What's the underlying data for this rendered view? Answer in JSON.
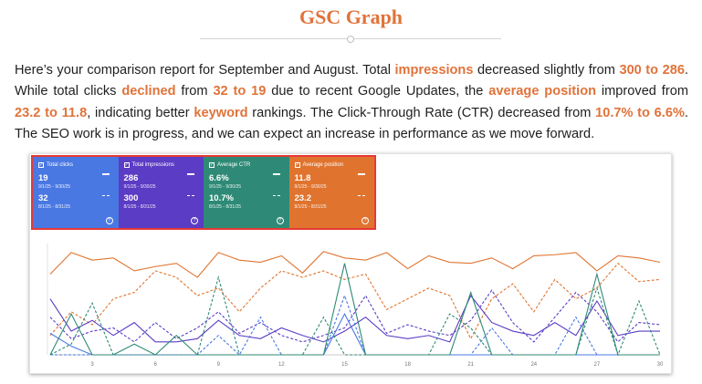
{
  "title": "GSC Graph",
  "report": [
    {
      "t": "Here’s your comparison report for September and August. Total ",
      "hl": false
    },
    {
      "t": "impressions",
      "hl": true
    },
    {
      "t": " decreased slightly from ",
      "hl": false
    },
    {
      "t": "300 to 286",
      "hl": true
    },
    {
      "t": ". While total clicks ",
      "hl": false
    },
    {
      "t": "declined",
      "hl": true
    },
    {
      "t": " from ",
      "hl": false
    },
    {
      "t": "32 to 19",
      "hl": true
    },
    {
      "t": " due to recent Google Updates, the ",
      "hl": false
    },
    {
      "t": "average position",
      "hl": true
    },
    {
      "t": " improved from ",
      "hl": false
    },
    {
      "t": "23.2 to 11.8",
      "hl": true
    },
    {
      "t": ", indicating better ",
      "hl": false
    },
    {
      "t": "keyword",
      "hl": true
    },
    {
      "t": " rankings. The Click-Through Rate (CTR) decreased from ",
      "hl": false
    },
    {
      "t": "10.7% to 6.6%",
      "hl": true
    },
    {
      "t": ". The SEO work is in progress, and we can expect an increase in performance as we move forward.",
      "hl": false
    }
  ],
  "cards": [
    {
      "label": "Total clicks",
      "color": "#4A78E3",
      "current": "19",
      "current_range": "9/1/25 - 9/30/25",
      "previous": "32",
      "previous_range": "8/1/25 - 8/31/25"
    },
    {
      "label": "Total impressions",
      "color": "#5B3CC4",
      "current": "286",
      "current_range": "9/1/25 - 9/30/25",
      "previous": "300",
      "previous_range": "8/1/25 - 8/31/25"
    },
    {
      "label": "Average CTR",
      "color": "#2E8A76",
      "current": "6.6%",
      "current_range": "9/1/25 - 9/30/25",
      "previous": "10.7%",
      "previous_range": "8/1/25 - 8/31/25"
    },
    {
      "label": "Average position",
      "color": "#E0742F",
      "current": "11.8",
      "current_range": "9/1/25 - 9/30/25",
      "previous": "23.2",
      "previous_range": "8/1/25 - 8/31/25"
    }
  ],
  "chart_data": {
    "type": "line",
    "x": [
      1,
      2,
      3,
      4,
      5,
      6,
      7,
      8,
      9,
      10,
      11,
      12,
      13,
      14,
      15,
      16,
      17,
      18,
      19,
      20,
      21,
      22,
      23,
      24,
      25,
      26,
      27,
      28,
      29,
      30
    ],
    "x_tick_labels": [
      "3",
      "6",
      "9",
      "12",
      "15",
      "18",
      "21",
      "24",
      "27",
      "30"
    ],
    "grid": false,
    "series": [
      {
        "color": "#E0742F",
        "style": "solid",
        "values": [
          75,
          95,
          88,
          90,
          78,
          82,
          85,
          72,
          95,
          88,
          86,
          92,
          76,
          96,
          90,
          88,
          95,
          80,
          92,
          86,
          85,
          90,
          80,
          92,
          93,
          95,
          78,
          92,
          90,
          86
        ]
      },
      {
        "color": "#E0742F",
        "style": "dashed",
        "values": [
          18,
          40,
          28,
          52,
          58,
          78,
          72,
          55,
          62,
          40,
          62,
          78,
          72,
          78,
          70,
          75,
          42,
          52,
          62,
          55,
          15,
          52,
          66,
          40,
          70,
          52,
          62,
          85,
          68,
          70
        ]
      },
      {
        "color": "#5B3CC4",
        "style": "solid",
        "values": [
          52,
          22,
          32,
          18,
          30,
          12,
          12,
          15,
          32,
          18,
          15,
          25,
          18,
          12,
          22,
          35,
          18,
          15,
          18,
          12,
          55,
          30,
          22,
          18,
          30,
          18,
          50,
          18,
          22,
          22
        ]
      },
      {
        "color": "#5B3CC4",
        "style": "dashed",
        "values": [
          35,
          15,
          22,
          25,
          12,
          30,
          15,
          25,
          40,
          20,
          30,
          18,
          12,
          18,
          25,
          55,
          20,
          28,
          22,
          18,
          32,
          60,
          30,
          12,
          35,
          58,
          40,
          12,
          30,
          28
        ]
      },
      {
        "color": "#4A78E3",
        "style": "solid",
        "values": [
          20,
          8,
          0,
          0,
          0,
          0,
          0,
          0,
          0,
          0,
          0,
          0,
          0,
          0,
          38,
          0,
          0,
          0,
          0,
          0,
          0,
          0,
          0,
          0,
          0,
          0,
          0,
          0,
          0,
          0
        ]
      },
      {
        "color": "#4A78E3",
        "style": "dashed",
        "values": [
          0,
          0,
          0,
          0,
          0,
          0,
          0,
          0,
          18,
          0,
          35,
          0,
          0,
          0,
          55,
          0,
          0,
          0,
          0,
          0,
          0,
          25,
          0,
          0,
          0,
          35,
          0,
          0,
          0,
          0
        ]
      },
      {
        "color": "#2E8A76",
        "style": "solid",
        "values": [
          0,
          38,
          0,
          0,
          10,
          0,
          18,
          0,
          0,
          0,
          0,
          0,
          0,
          0,
          85,
          0,
          0,
          0,
          0,
          0,
          58,
          0,
          0,
          0,
          0,
          0,
          75,
          0,
          0,
          0
        ]
      },
      {
        "color": "#2E8A76",
        "style": "dashed",
        "values": [
          0,
          10,
          48,
          0,
          0,
          0,
          0,
          0,
          72,
          0,
          0,
          0,
          0,
          35,
          0,
          0,
          0,
          0,
          0,
          38,
          25,
          0,
          0,
          0,
          0,
          0,
          62,
          0,
          50,
          0
        ]
      }
    ]
  }
}
